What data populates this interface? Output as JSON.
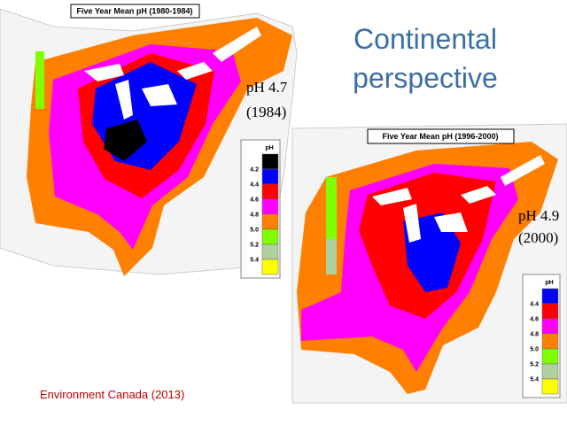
{
  "slide": {
    "title_lines": [
      "Continental",
      "perspective"
    ],
    "credit": "Environment Canada (2013)"
  },
  "maps": [
    {
      "title": "Five Year Mean pH (1980-1984)",
      "annotation": [
        "pH 4.7",
        "(1984)"
      ],
      "legend": {
        "title": "pH",
        "labels": [
          "4.2",
          "4.4",
          "4.6",
          "4.8",
          "5.0",
          "5.2",
          "5.4"
        ],
        "colors": [
          "#000000",
          "#0000ff",
          "#ff0000",
          "#ff00ff",
          "#ff8000",
          "#80ff00",
          "#b0d0a0",
          "#ffff00"
        ]
      }
    },
    {
      "title": "Five Year Mean pH (1996-2000)",
      "annotation": [
        "pH 4.9",
        "(2000)"
      ],
      "legend": {
        "title": "pH",
        "labels": [
          "4.4",
          "4.6",
          "4.8",
          "5.0",
          "5.2",
          "5.4"
        ],
        "colors": [
          "#0000ff",
          "#ff0000",
          "#ff00ff",
          "#ff8000",
          "#80ff00",
          "#b0d0a0",
          "#ffff00"
        ]
      }
    }
  ]
}
